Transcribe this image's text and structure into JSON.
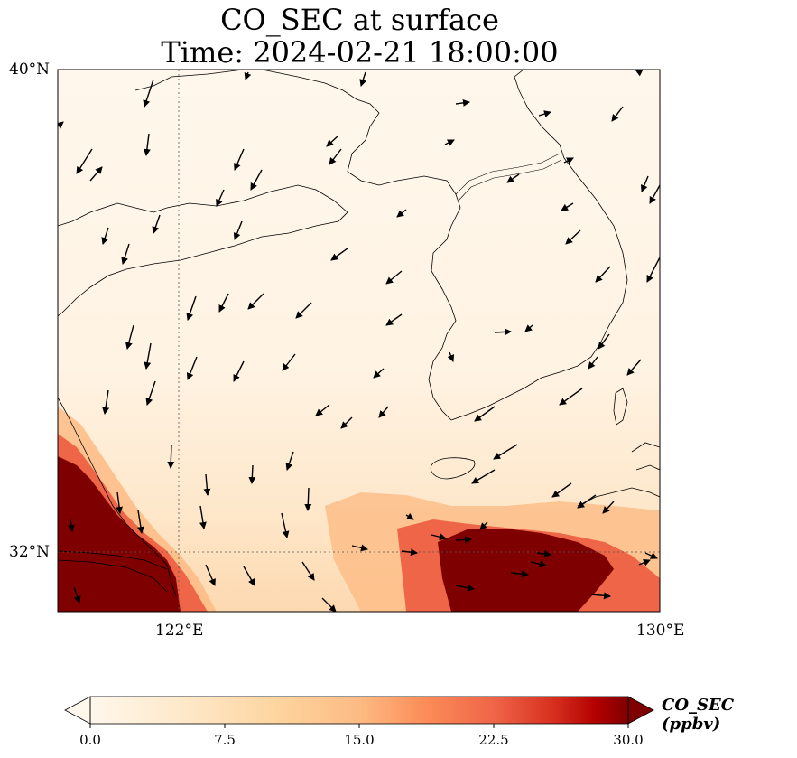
{
  "title": "CO_SEC at surface",
  "subtitle": "Time: 2024-02-21 18:00:00",
  "axes": {
    "lat_labels": [
      "40°N",
      "32°N"
    ],
    "lon_labels": [
      "122°E",
      "130°E"
    ],
    "lat_range": [
      31,
      40
    ],
    "lon_range": [
      120,
      130
    ],
    "gridlines": "dotted at 122°E and 32°N"
  },
  "colorbar": {
    "label": "CO_SEC (ppbv)",
    "ticks": [
      "0.0",
      "7.5",
      "15.0",
      "22.5",
      "30.0"
    ],
    "range": [
      0,
      30
    ],
    "colormap": "OrRd",
    "extend": "both"
  },
  "colors": {
    "low": "#fff7ec",
    "mid": "#fc8d59",
    "high": "#7f0000"
  },
  "wind_vectors": "black arrows showing near-surface wind, predominantly from the north/northwest over the Yellow Sea"
}
